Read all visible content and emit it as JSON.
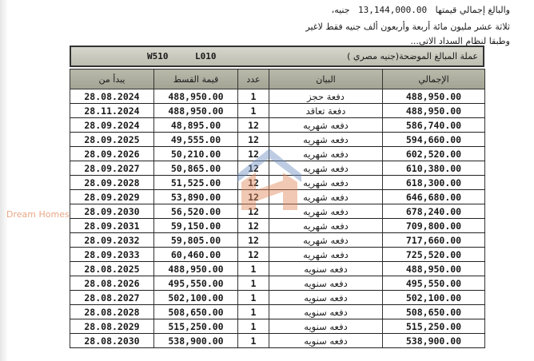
{
  "intro": {
    "line1_prefix": "والبالغ إجمالي قيمتها",
    "total": "13,144,000.00",
    "line1_suffix": "جنيه،",
    "line2": "ثلاثة عشر مليون مائة أربعة وأربعون ألف  جنيه فقط لاغير",
    "line3": "وطبقا لنظام السداد الاتي..."
  },
  "currency_box": {
    "label": "عملة المبالغ الموضحة(جنيه مصري  )",
    "unit_code": "L010",
    "building_code": "W510"
  },
  "table": {
    "headers": {
      "start": "يبدأ من",
      "installment": "قيمة القسط",
      "count": "عدد",
      "description": "البيان",
      "total": "الإجمالي"
    },
    "rows": [
      {
        "start": "28.08.2024",
        "installment": "488,950.00",
        "count": "1",
        "description": "دفعة حجز",
        "total": "488,950.00"
      },
      {
        "start": "28.11.2024",
        "installment": "488,950.00",
        "count": "1",
        "description": "دفعة تعاقد",
        "total": "488,950.00"
      },
      {
        "start": "28.09.2024",
        "installment": "48,895.00",
        "count": "12",
        "description": "دفعه شهريه",
        "total": "586,740.00"
      },
      {
        "start": "28.09.2025",
        "installment": "49,555.00",
        "count": "12",
        "description": "دفعه شهريه",
        "total": "594,660.00"
      },
      {
        "start": "28.09.2026",
        "installment": "50,210.00",
        "count": "12",
        "description": "دفعه شهريه",
        "total": "602,520.00"
      },
      {
        "start": "28.09.2027",
        "installment": "50,865.00",
        "count": "12",
        "description": "دفعه شهريه",
        "total": "610,380.00"
      },
      {
        "start": "28.09.2028",
        "installment": "51,525.00",
        "count": "12",
        "description": "دفعه شهريه",
        "total": "618,300.00"
      },
      {
        "start": "28.09.2029",
        "installment": "53,890.00",
        "count": "12",
        "description": "دفعه شهريه",
        "total": "646,680.00"
      },
      {
        "start": "28.09.2030",
        "installment": "56,520.00",
        "count": "12",
        "description": "دفعه شهريه",
        "total": "678,240.00"
      },
      {
        "start": "28.09.2031",
        "installment": "59,150.00",
        "count": "12",
        "description": "دفعه شهريه",
        "total": "709,800.00"
      },
      {
        "start": "28.09.2032",
        "installment": "59,805.00",
        "count": "12",
        "description": "دفعه شهريه",
        "total": "717,660.00"
      },
      {
        "start": "28.09.2033",
        "installment": "60,460.00",
        "count": "12",
        "description": "دفعه شهريه",
        "total": "725,520.00"
      },
      {
        "start": "28.08.2025",
        "installment": "488,950.00",
        "count": "1",
        "description": "دفعه سنويه",
        "total": "488,950.00"
      },
      {
        "start": "28.08.2026",
        "installment": "495,550.00",
        "count": "1",
        "description": "دفعه سنويه",
        "total": "495,550.00"
      },
      {
        "start": "28.08.2027",
        "installment": "502,100.00",
        "count": "1",
        "description": "دفعه سنويه",
        "total": "502,100.00"
      },
      {
        "start": "28.08.2028",
        "installment": "508,650.00",
        "count": "1",
        "description": "دفعه سنويه",
        "total": "508,650.00"
      },
      {
        "start": "28.08.2029",
        "installment": "515,250.00",
        "count": "1",
        "description": "دفعه سنويه",
        "total": "515,250.00"
      },
      {
        "start": "28.08.2030",
        "installment": "538,900.00",
        "count": "1",
        "description": "دفعه سنويه",
        "total": "538,900.00"
      }
    ]
  },
  "watermark": {
    "text": "Dream Homes",
    "colors": {
      "roof": "#6f8fbf",
      "house": "#e0875a"
    }
  }
}
